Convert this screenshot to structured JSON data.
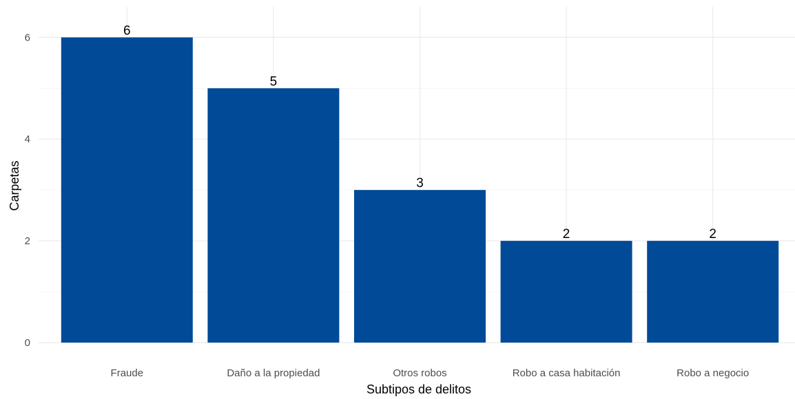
{
  "chart_data": {
    "type": "bar",
    "title": "",
    "xlabel": "Subtipos de delitos",
    "ylabel": "Carpetas",
    "categories": [
      "Fraude",
      "Daño a la propiedad",
      "Otros robos",
      "Robo a casa habitación",
      "Robo a negocio"
    ],
    "values": [
      6,
      5,
      3,
      2,
      2
    ],
    "data_labels": [
      "6",
      "5",
      "3",
      "2",
      "2"
    ],
    "ylim": [
      0,
      6.6
    ],
    "yticks": [
      0,
      2,
      4,
      6
    ],
    "ytick_labels": [
      "0",
      "2",
      "4",
      "6"
    ],
    "grid": true,
    "legend": "none",
    "bar_color": "#004A98"
  }
}
